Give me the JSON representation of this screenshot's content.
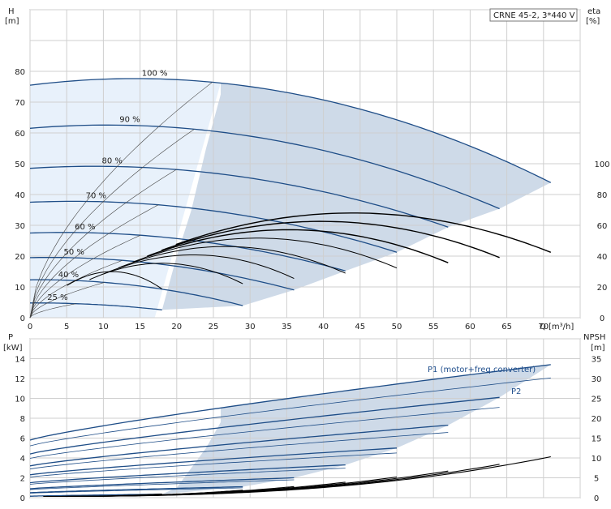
{
  "chart_data": [
    {
      "type": "line",
      "title": "CRNE 45-2, 3*440 V",
      "left_axis": {
        "name": "H",
        "unit": "[m]",
        "ticks": [
          0,
          10,
          20,
          30,
          40,
          50,
          60,
          70,
          80
        ],
        "range": [
          0,
          100
        ]
      },
      "right_axis": {
        "name": "eta",
        "unit": "[%]",
        "ticks": [
          0,
          20,
          40,
          60,
          80,
          100
        ],
        "range": [
          0,
          200
        ]
      },
      "x_axis": {
        "name": "Q",
        "unit": "[m³/h]",
        "ticks": [
          0,
          5,
          10,
          15,
          20,
          25,
          30,
          35,
          40,
          45,
          50,
          55,
          60,
          65,
          70
        ],
        "range": [
          0,
          75
        ]
      },
      "grid": true,
      "operating_area_color": "#c9d6e6",
      "operating_area_light_color": "#e8f1fb",
      "curve_color": "#1e4d87",
      "speed_labels": [
        "25 %",
        "40 %",
        "50 %",
        "60 %",
        "70 %",
        "80 %",
        "90 %",
        "100 %"
      ],
      "qh_series": [
        {
          "speed_pct": 100,
          "shutoff": 75.5,
          "qmax": 71,
          "coef": [
            0.3,
            -0.0105
          ]
        },
        {
          "speed_pct": 90,
          "shutoff": 61.5,
          "qmax": 64,
          "coef": [
            0.2,
            -0.0095
          ]
        },
        {
          "speed_pct": 80,
          "shutoff": 48.5,
          "qmax": 57,
          "coef": [
            0.15,
            -0.0085
          ]
        },
        {
          "speed_pct": 70,
          "shutoff": 37.5,
          "qmax": 50,
          "coef": [
            0.1,
            -0.0085
          ]
        },
        {
          "speed_pct": 60,
          "shutoff": 27.5,
          "qmax": 43,
          "coef": [
            0.08,
            -0.0085
          ]
        },
        {
          "speed_pct": 50,
          "shutoff": 19.5,
          "qmax": 36,
          "coef": [
            0.05,
            -0.0095
          ]
        },
        {
          "speed_pct": 40,
          "shutoff": 12.3,
          "qmax": 29,
          "coef": [
            0.03,
            -0.011
          ]
        },
        {
          "speed_pct": 25,
          "shutoff": 4.8,
          "qmax": 18,
          "coef": [
            0.01,
            -0.0075
          ]
        }
      ],
      "eta_max_pct": 68
    },
    {
      "type": "line",
      "left_axis": {
        "name": "P",
        "unit": "[kW]",
        "ticks": [
          0,
          2,
          4,
          6,
          8,
          10,
          12,
          14
        ],
        "range": [
          0,
          16
        ]
      },
      "right_axis": {
        "name": "NPSH",
        "unit": "[m]",
        "ticks": [
          0,
          5,
          10,
          15,
          20,
          25,
          30,
          35
        ],
        "range": [
          0,
          40
        ]
      },
      "x_axis": {
        "range": [
          0,
          75
        ]
      },
      "grid": true,
      "annotations": [
        "P1 (motor+freq.converter)",
        "P2"
      ],
      "p1_series": [
        {
          "speed_pct": 100,
          "p0": 5.8,
          "pmax": 13.4,
          "qmax": 71
        },
        {
          "speed_pct": 90,
          "p0": 4.4,
          "pmax": 10.1,
          "qmax": 64
        },
        {
          "speed_pct": 80,
          "p0": 3.2,
          "pmax": 7.3,
          "qmax": 57
        },
        {
          "speed_pct": 70,
          "p0": 2.3,
          "pmax": 5.0,
          "qmax": 50
        },
        {
          "speed_pct": 60,
          "p0": 1.5,
          "pmax": 3.3,
          "qmax": 43
        },
        {
          "speed_pct": 50,
          "p0": 0.9,
          "pmax": 2.0,
          "qmax": 36
        },
        {
          "speed_pct": 40,
          "p0": 0.5,
          "pmax": 1.1,
          "qmax": 29
        },
        {
          "speed_pct": 25,
          "p0": 0.15,
          "pmax": 0.35,
          "qmax": 18
        }
      ],
      "p2_ratio": 0.9,
      "npsh_max_m": 10
    }
  ]
}
